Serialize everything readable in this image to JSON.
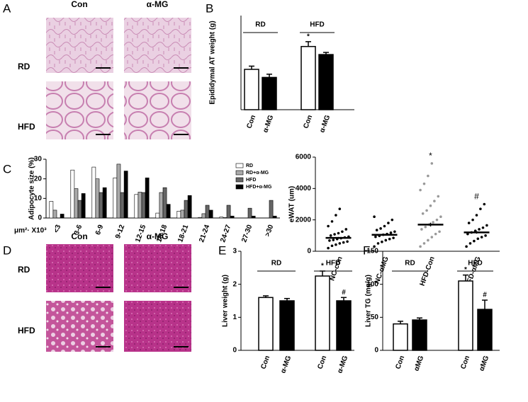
{
  "panel_labels": [
    "A",
    "B",
    "C",
    "D",
    "E",
    "F"
  ],
  "micrographs": [
    {
      "columns": [
        "Con",
        "α-MG"
      ],
      "rows": [
        "RD",
        "HFD"
      ]
    },
    {
      "columns": [
        "Con",
        "α-MG"
      ],
      "rows": [
        "RD",
        "HFD"
      ]
    }
  ],
  "chart_data": [
    {
      "type": "bar",
      "ylabel": "Epididymal AT weight (g)",
      "groups": [
        "RD",
        "HFD"
      ],
      "categories": [
        "Con",
        "α-MG",
        "Con",
        "α-MG"
      ],
      "values": [
        1.5,
        1.2,
        2.35,
        2.05
      ],
      "errors": [
        0.12,
        0.12,
        0.18,
        0.08
      ],
      "colors": [
        "#ffffff",
        "#000000",
        "#ffffff",
        "#000000"
      ],
      "markers": [
        null,
        null,
        "*",
        null
      ],
      "ylim": [
        0,
        3.5
      ]
    },
    {
      "type": "grouped_bar",
      "ylabel": "Adipocyte size (%)",
      "xlabel": "μm²· X10³",
      "categories": [
        "<3",
        "3-6",
        "6-9",
        "9-12",
        "12-15",
        "15-18",
        "18-21",
        "21-24",
        "24-27",
        "27-30",
        ">30"
      ],
      "series": [
        {
          "name": "RD",
          "color": "#ffffff",
          "values": [
            8.5,
            24.5,
            26,
            20.5,
            12,
            2.5,
            3.5,
            0.3,
            0.5,
            0,
            0
          ]
        },
        {
          "name": "RD+α-MG",
          "color": "#aaaaaa",
          "values": [
            4,
            15,
            20,
            27.5,
            13.2,
            13,
            4,
            2.2,
            0.2,
            0,
            0
          ]
        },
        {
          "name": "HFD",
          "color": "#666666",
          "values": [
            0,
            9,
            13,
            13,
            13,
            15.5,
            9,
            6.5,
            6.5,
            5,
            9
          ]
        },
        {
          "name": "HFD+α-MG",
          "color": "#000000",
          "values": [
            2,
            12.5,
            15.5,
            24,
            20.5,
            7,
            11.5,
            4,
            1,
            1,
            1
          ]
        }
      ],
      "legend": "top-right",
      "ylim": [
        0,
        30
      ],
      "yticks": [
        0,
        10,
        20,
        30
      ]
    },
    {
      "type": "strip",
      "ylabel": "eWAT (um)",
      "categories": [
        "NC-con",
        "NC-αMG",
        "HFD-Con",
        "HFD-αMG"
      ],
      "values": [
        [
          200,
          350,
          420,
          500,
          560,
          620,
          680,
          720,
          780,
          830,
          880,
          930,
          1000,
          1080,
          1150,
          1250,
          1400,
          1600,
          1900,
          2300,
          2700
        ],
        [
          300,
          500,
          600,
          700,
          780,
          850,
          920,
          980,
          1050,
          1100,
          1180,
          1250,
          1350,
          1450,
          1600,
          1800,
          2000,
          2200
        ],
        [
          300,
          500,
          700,
          900,
          1100,
          1250,
          1400,
          1550,
          1700,
          1850,
          2000,
          2200,
          2400,
          2600,
          2900,
          3200,
          3500,
          3900,
          4300,
          4800,
          5600
        ],
        [
          300,
          500,
          650,
          800,
          900,
          1000,
          1100,
          1200,
          1300,
          1400,
          1500,
          1650,
          1800,
          2000,
          2300,
          2700,
          3000
        ]
      ],
      "means": [
        850,
        1050,
        1700,
        1200
      ],
      "errors": [
        60,
        60,
        120,
        80
      ],
      "colors": [
        "#000000",
        "#000000",
        "#999999",
        "#000000"
      ],
      "markers": [
        null,
        null,
        "*",
        "#"
      ],
      "ylim": [
        0,
        6000
      ],
      "yticks": [
        0,
        2000,
        4000,
        6000
      ]
    },
    {
      "type": "bar",
      "ylabel": "Liver weight (g)",
      "groups": [
        "RD",
        "HFD"
      ],
      "categories": [
        "Con",
        "α-MG",
        "Con",
        "α-MG"
      ],
      "values": [
        1.6,
        1.5,
        2.25,
        1.5
      ],
      "errors": [
        0.05,
        0.07,
        0.15,
        0.1
      ],
      "colors": [
        "#ffffff",
        "#000000",
        "#ffffff",
        "#000000"
      ],
      "markers": [
        null,
        null,
        "*",
        "#"
      ],
      "ylim": [
        0,
        3
      ],
      "yticks": [
        0,
        1,
        2,
        3
      ]
    },
    {
      "type": "bar",
      "ylabel": "Liver TG (mg/g)",
      "groups": [
        "RD",
        "HFD"
      ],
      "categories": [
        "Con",
        "αMG",
        "Con",
        "αMG"
      ],
      "values": [
        40,
        46,
        105,
        62
      ],
      "errors": [
        4,
        3,
        9,
        14
      ],
      "colors": [
        "#ffffff",
        "#000000",
        "#ffffff",
        "#000000"
      ],
      "markers": [
        null,
        null,
        "*",
        "#"
      ],
      "ylim": [
        0,
        150
      ],
      "yticks": [
        0,
        50,
        100,
        150
      ]
    }
  ]
}
